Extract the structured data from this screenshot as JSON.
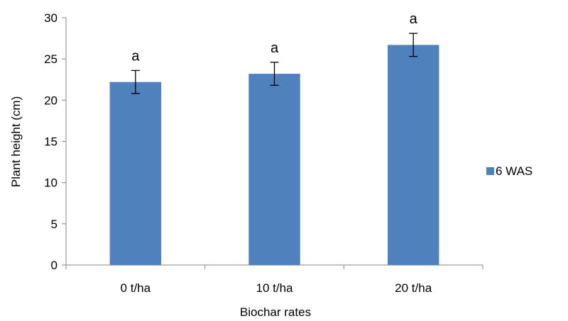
{
  "chart_data": {
    "type": "bar",
    "categories": [
      "0 t/ha",
      "10 t/ha",
      "20 t/ha"
    ],
    "series": [
      {
        "name": "6 WAS",
        "values": [
          22.2,
          23.2,
          26.7
        ],
        "errors": [
          1.4,
          1.4,
          1.4
        ],
        "labels": [
          "a",
          "a",
          "a"
        ],
        "color": "#4f81bd"
      }
    ],
    "xlabel": "Biochar rates",
    "ylabel": "Plant height (cm)",
    "ylim": [
      0,
      30
    ],
    "yticks": [
      0,
      5,
      10,
      15,
      20,
      25,
      30
    ],
    "grid": false,
    "legend_position": "right"
  }
}
